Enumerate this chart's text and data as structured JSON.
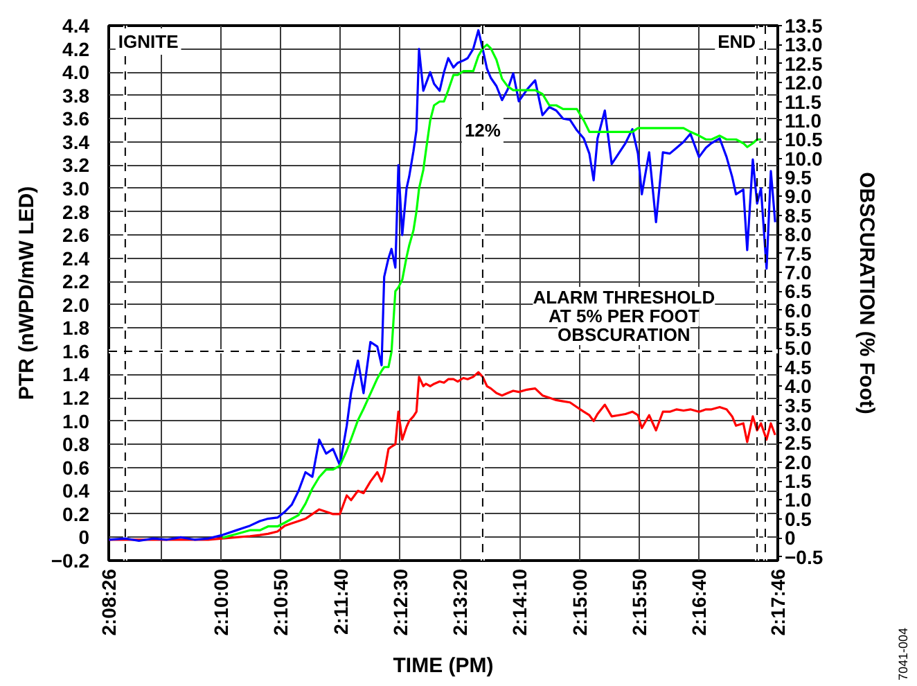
{
  "chart_data": {
    "type": "line",
    "xlabel": "TIME (PM)",
    "ylabel": "PTR (nWPD/mW LED)",
    "y2label": "OBSCURATION (% Foot)",
    "x": [
      2.1406,
      2.1444,
      2.1476,
      2.1509,
      2.1541,
      2.1573,
      2.1605,
      2.1637,
      2.167,
      2.1702,
      2.1734,
      2.1757,
      2.1776,
      2.1798,
      2.1815,
      2.1831,
      2.1847,
      2.1863,
      2.1879,
      2.1895,
      2.1911,
      2.1927,
      2.1943,
      2.1959,
      2.1969,
      2.1985,
      2.1998,
      2.2014,
      2.203,
      2.204,
      2.2046,
      2.2056,
      2.2063,
      2.2072,
      2.2079,
      2.2088,
      2.2098,
      2.2104,
      2.2114,
      2.2121,
      2.2127,
      2.2137,
      2.2143,
      2.2153,
      2.2162,
      2.2175,
      2.2185,
      2.2195,
      2.2207,
      2.2217,
      2.223,
      2.224,
      2.2253,
      2.2265,
      2.2275,
      2.2285,
      2.2294,
      2.2307,
      2.232,
      2.2333,
      2.2346,
      2.2359,
      2.2378,
      2.2397,
      2.2414,
      2.243,
      2.2446,
      2.2462,
      2.2478,
      2.2494,
      2.251,
      2.2523,
      2.2533,
      2.2542,
      2.2559,
      2.2575,
      2.2591,
      2.2607,
      2.2623,
      2.2636,
      2.2645,
      2.2662,
      2.2678,
      2.2694,
      2.271,
      2.2726,
      2.2742,
      2.2758,
      2.2778,
      2.2794,
      2.2807,
      2.2826,
      2.2842,
      2.2855,
      2.2864,
      2.2881,
      2.289,
      2.2903,
      2.2913,
      2.2922,
      2.2935,
      2.2945,
      2.2955
    ],
    "xlim": [
      2.14056,
      2.29611
    ],
    "xticks": [
      {
        "value": 2.14056,
        "label": "2:08:26"
      },
      {
        "value": 2.15278,
        "label": null
      },
      {
        "value": 2.16667,
        "label": "2:10:00"
      },
      {
        "value": 2.18056,
        "label": "2:10:50"
      },
      {
        "value": 2.19444,
        "label": "2:11:40"
      },
      {
        "value": 2.20833,
        "label": "2:12:30"
      },
      {
        "value": 2.22222,
        "label": "2:13:20"
      },
      {
        "value": 2.23611,
        "label": "2:14:10"
      },
      {
        "value": 2.25,
        "label": "2:15:00"
      },
      {
        "value": 2.26389,
        "label": "2:15:50"
      },
      {
        "value": 2.27778,
        "label": "2:16:40"
      },
      {
        "value": 2.29611,
        "label": "2:17:46"
      }
    ],
    "ylim": [
      -0.2,
      4.4
    ],
    "yticks": [
      -0.2,
      0,
      0.2,
      0.4,
      0.6,
      0.8,
      {
        "value": 1,
        "label": "1.0"
      },
      1.2,
      1.4,
      1.6,
      1.8,
      {
        "value": 2,
        "label": "2.0"
      },
      2.2,
      2.4,
      2.6,
      2.8,
      {
        "value": 3,
        "label": "3.0"
      },
      3.2,
      3.4,
      3.6,
      3.8,
      {
        "value": 4,
        "label": "4.0"
      },
      4.2,
      4.4
    ],
    "y2lim": [
      -0.6,
      13.5
    ],
    "y2ticks": [
      -0.5,
      0,
      0.5,
      {
        "value": 1,
        "label": "1.0"
      },
      1.5,
      {
        "value": 2,
        "label": "2.0"
      },
      2.5,
      {
        "value": 3,
        "label": "3.0"
      },
      3.5,
      {
        "value": 4,
        "label": "4.0"
      },
      4.5,
      {
        "value": 5,
        "label": "5.0"
      },
      5.5,
      {
        "value": 6,
        "label": "6.0"
      },
      6.5,
      {
        "value": 7,
        "label": "7.0"
      },
      7.5,
      {
        "value": 8,
        "label": "8.0"
      },
      8.5,
      {
        "value": 9,
        "label": "9.0"
      },
      9.5,
      {
        "value": 10,
        "label": "10.0"
      },
      10.5,
      {
        "value": 11,
        "label": "11.0"
      },
      11.5,
      {
        "value": 12,
        "label": "12.0"
      },
      12.5,
      {
        "value": 13,
        "label": "13.0"
      },
      13.5
    ],
    "grid": true,
    "line_style": "solid",
    "ref_lines": [
      {
        "axis": "x",
        "value": 2.1444,
        "label": "IGNITE",
        "color": "#000000",
        "line_style": "dashed"
      },
      {
        "axis": "x",
        "value": 2.2275,
        "color": "#000000",
        "line_style": "dashed"
      },
      {
        "axis": "x",
        "value": 2.2913,
        "label": "END",
        "color": "#000000",
        "line_style": "dashed"
      },
      {
        "axis": "x",
        "value": 2.2932,
        "color": "#000000",
        "line_style": "dashed"
      },
      {
        "axis": "y",
        "value": 1.6,
        "label": "ALARM THRESHOLD\nAT 5% PER FOOT\nOBSCURATION",
        "color": "#000000",
        "line_style": "dashed"
      }
    ],
    "annotations": [
      {
        "text": "12%",
        "x": 2.2275,
        "y": 3.5
      },
      "7041-004"
    ],
    "series": [
      {
        "color": "#ff0000",
        "values": [
          -0.02,
          -0.02,
          -0.02,
          -0.02,
          -0.02,
          -0.02,
          -0.02,
          -0.02,
          -0.01,
          0.0,
          0.01,
          0.02,
          0.03,
          0.05,
          0.1,
          0.12,
          0.14,
          0.16,
          0.2,
          0.24,
          0.22,
          0.2,
          0.2,
          0.36,
          0.32,
          0.4,
          0.38,
          0.48,
          0.56,
          0.48,
          0.55,
          0.76,
          0.78,
          0.8,
          1.08,
          0.84,
          0.95,
          1.0,
          1.04,
          1.08,
          1.38,
          1.3,
          1.32,
          1.3,
          1.32,
          1.34,
          1.33,
          1.36,
          1.36,
          1.34,
          1.37,
          1.36,
          1.38,
          1.42,
          1.38,
          1.3,
          1.28,
          1.24,
          1.22,
          1.24,
          1.26,
          1.25,
          1.27,
          1.28,
          1.22,
          1.2,
          1.18,
          1.17,
          1.16,
          1.12,
          1.08,
          1.05,
          1.0,
          1.06,
          1.14,
          1.04,
          1.05,
          1.06,
          1.08,
          1.05,
          0.94,
          1.05,
          0.92,
          1.08,
          1.08,
          1.1,
          1.09,
          1.1,
          1.08,
          1.1,
          1.1,
          1.12,
          1.1,
          1.04,
          0.96,
          0.98,
          0.82,
          1.04,
          0.92,
          0.98,
          0.84,
          0.98,
          0.88
        ]
      },
      {
        "color": "#0000ff",
        "values": [
          -0.02,
          -0.01,
          -0.03,
          -0.01,
          -0.02,
          0,
          -0.02,
          -0.01,
          0.02,
          0.06,
          0.1,
          0.14,
          0.16,
          0.17,
          0.22,
          0.28,
          0.4,
          0.56,
          0.52,
          0.84,
          0.72,
          0.76,
          0.62,
          0.96,
          1.24,
          1.52,
          1.24,
          1.68,
          1.64,
          1.48,
          2.24,
          2.4,
          2.48,
          2.32,
          3.2,
          2.6,
          3.0,
          3.1,
          3.32,
          3.5,
          4.2,
          3.84,
          3.9,
          4.0,
          3.9,
          3.84,
          4.0,
          4.12,
          4.04,
          4.08,
          4.1,
          4.12,
          4.2,
          4.36,
          4.2,
          4.03,
          3.95,
          3.88,
          3.76,
          3.85,
          3.99,
          3.75,
          3.85,
          3.93,
          3.63,
          3.7,
          3.67,
          3.6,
          3.59,
          3.5,
          3.43,
          3.3,
          3.07,
          3.43,
          3.67,
          3.21,
          3.3,
          3.39,
          3.51,
          3.3,
          2.95,
          3.31,
          2.71,
          3.31,
          3.3,
          3.35,
          3.4,
          3.47,
          3.27,
          3.35,
          3.39,
          3.43,
          3.27,
          3.1,
          2.95,
          2.99,
          2.47,
          3.25,
          2.87,
          3.0,
          2.31,
          3.15,
          2.71
        ]
      },
      {
        "color": "#00ff00",
        "axis": "y2",
        "values": [
          null,
          null,
          null,
          null,
          null,
          null,
          null,
          null,
          0.0,
          0.1,
          0.2,
          0.2,
          0.3,
          0.3,
          0.4,
          0.5,
          0.6,
          0.9,
          1.3,
          1.6,
          1.8,
          1.8,
          1.9,
          2.3,
          2.6,
          3.1,
          3.4,
          3.8,
          4.2,
          4.4,
          4.5,
          4.5,
          4.9,
          6.5,
          6.6,
          6.8,
          7.4,
          7.7,
          8.1,
          8.6,
          9.2,
          9.7,
          10.2,
          11.0,
          11.4,
          11.5,
          11.5,
          11.8,
          12.2,
          12.2,
          12.3,
          12.3,
          12.3,
          12.7,
          12.9,
          13.0,
          12.9,
          12.6,
          12.1,
          11.9,
          11.8,
          11.8,
          11.8,
          11.8,
          11.7,
          11.4,
          11.4,
          11.3,
          11.3,
          11.3,
          11.0,
          10.7,
          10.7,
          10.7,
          10.7,
          10.7,
          10.7,
          10.7,
          10.7,
          10.8,
          10.8,
          10.8,
          10.8,
          10.8,
          10.8,
          10.8,
          10.8,
          10.7,
          10.6,
          10.5,
          10.5,
          10.6,
          10.5,
          10.5,
          10.5,
          10.4,
          10.3,
          10.4,
          10.5,
          10.5,
          null,
          null,
          null
        ]
      }
    ]
  }
}
